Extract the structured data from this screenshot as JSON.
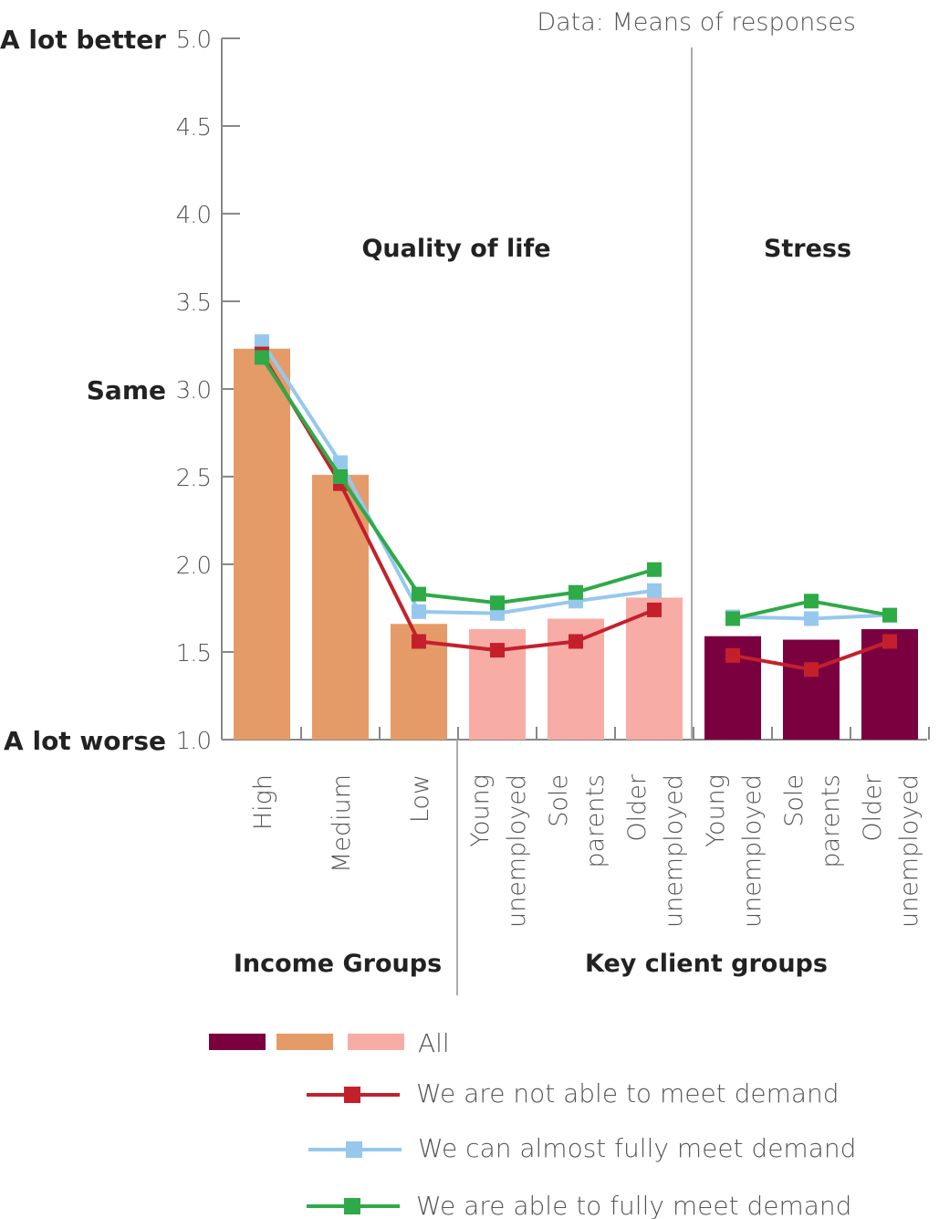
{
  "chart_data": {
    "type": "bar",
    "note": "Data: Means of responses",
    "y_axis": {
      "ylim": [
        1.0,
        5.0
      ],
      "ticks": [
        "5.0",
        "4.5",
        "4.0",
        "3.5",
        "3.0",
        "2.5",
        "2.0",
        "1.5",
        "1.0"
      ],
      "tick_values": [
        5.0,
        4.5,
        4.0,
        3.5,
        3.0,
        2.5,
        2.0,
        1.5,
        1.0
      ],
      "labels": [
        {
          "value": 5.0,
          "text": "A lot better"
        },
        {
          "value": 3.0,
          "text": "Same"
        },
        {
          "value": 1.0,
          "text": "A lot worse"
        }
      ]
    },
    "panels": [
      {
        "title": "Quality of life"
      },
      {
        "title": "Stress"
      }
    ],
    "groups": [
      {
        "label": "Income Groups"
      },
      {
        "label": "Key client groups"
      }
    ],
    "categories": [
      {
        "lines": [
          "High"
        ]
      },
      {
        "lines": [
          "Medium"
        ]
      },
      {
        "lines": [
          "Low"
        ]
      },
      {
        "lines": [
          "Young",
          "unemployed"
        ]
      },
      {
        "lines": [
          "Sole",
          "parents"
        ]
      },
      {
        "lines": [
          "Older",
          "unemployed"
        ]
      },
      {
        "lines": [
          "Young",
          "unemployed"
        ]
      },
      {
        "lines": [
          "Sole",
          "parents"
        ]
      },
      {
        "lines": [
          "Older",
          "unemployed"
        ]
      }
    ],
    "bars": {
      "label": "All",
      "values": [
        3.23,
        2.51,
        1.66,
        1.63,
        1.69,
        1.81,
        1.59,
        1.57,
        1.63
      ],
      "colors": [
        "#e59b68",
        "#e59b68",
        "#e59b68",
        "#f7ada6",
        "#f7ada6",
        "#f7ada6",
        "#7a0040",
        "#7a0040",
        "#7a0040"
      ],
      "legend_swatches": [
        "#7a0040",
        "#e59b68",
        "#f7ada6"
      ]
    },
    "series": [
      {
        "name": "We are not able to meet demand",
        "color": "#c4202c",
        "segments": [
          [
            3.2,
            2.46,
            1.56,
            1.51,
            1.56,
            1.74
          ],
          [
            1.48,
            1.4,
            1.56
          ]
        ]
      },
      {
        "name": "We can almost fully meet demand",
        "color": "#96c8ee",
        "segments": [
          [
            3.27,
            2.58,
            1.73,
            1.72,
            1.79,
            1.85
          ],
          [
            1.7,
            1.69,
            1.71
          ]
        ]
      },
      {
        "name": "We are able to fully meet demand",
        "color": "#2eaa47",
        "segments": [
          [
            3.18,
            2.5,
            1.83,
            1.78,
            1.84,
            1.97
          ],
          [
            1.69,
            1.79,
            1.71
          ]
        ]
      }
    ]
  }
}
